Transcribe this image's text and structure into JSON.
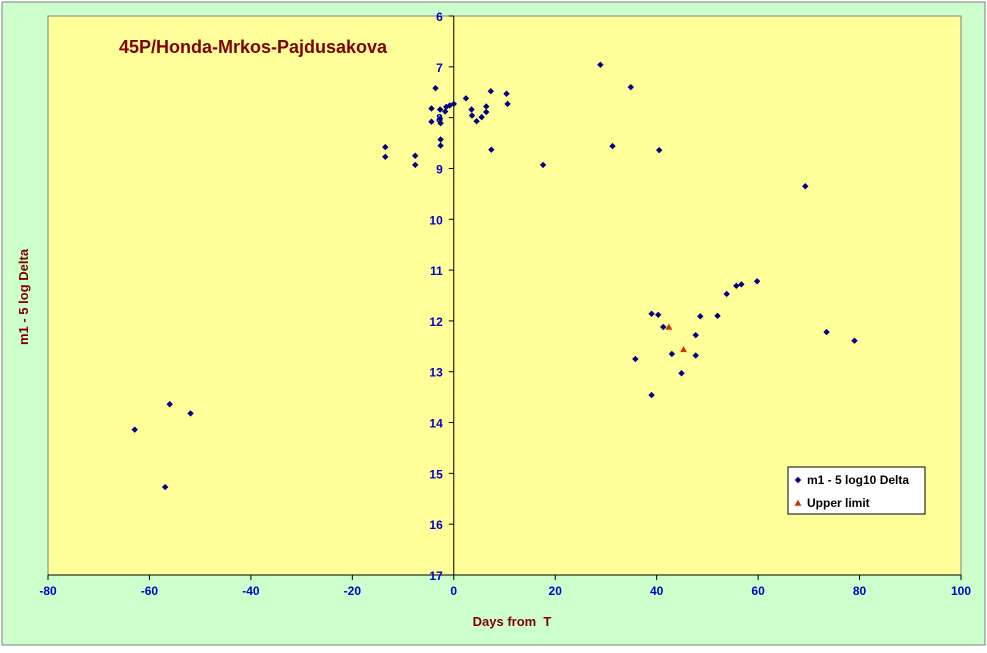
{
  "colors": {
    "chart_area": "#ccffcc",
    "plot_area": "#ffff99",
    "title": "#800000",
    "axis_title": "#800000",
    "tick_label": "#0000cc",
    "series_marker": "#000080",
    "upper_limit_marker": "#cc3300"
  },
  "chart_data": {
    "type": "scatter",
    "title": "45P/Honda-Mrkos-Pajdusakova",
    "xlabel": "Days from  T",
    "ylabel": "m1 - 5 log Delta",
    "xlim": [
      -80,
      100
    ],
    "ylim": [
      6,
      17
    ],
    "y_reversed": true,
    "grid": false,
    "legend_position": "lower-right",
    "x_ticks": [
      "-80",
      "-60",
      "-40",
      "-20",
      "0",
      "20",
      "40",
      "60",
      "80",
      "100"
    ],
    "y_ticks": [
      "6",
      "7",
      "8",
      "9",
      "10",
      "11",
      "12",
      "13",
      "14",
      "15",
      "16",
      "17"
    ],
    "series": [
      {
        "name": "m1 - 5 log10 Delta",
        "marker": "diamond",
        "points": [
          [
            -62.9,
            14.14
          ],
          [
            -56.0,
            13.64
          ],
          [
            -51.9,
            13.82
          ],
          [
            -56.9,
            15.27
          ],
          [
            -13.5,
            8.58
          ],
          [
            -13.5,
            8.77
          ],
          [
            -7.6,
            8.75
          ],
          [
            -7.6,
            8.93
          ],
          [
            -4.4,
            7.82
          ],
          [
            -4.4,
            8.08
          ],
          [
            -3.6,
            7.42
          ],
          [
            -2.7,
            7.84
          ],
          [
            -2.7,
            8.02
          ],
          [
            -2.6,
            8.11
          ],
          [
            -2.6,
            8.43
          ],
          [
            -2.6,
            8.55
          ],
          [
            -1.7,
            7.88
          ],
          [
            -1.5,
            7.79
          ],
          [
            -0.8,
            7.76
          ],
          [
            0.0,
            7.73
          ],
          [
            2.4,
            7.62
          ],
          [
            3.5,
            7.84
          ],
          [
            3.6,
            7.96
          ],
          [
            4.5,
            8.07
          ],
          [
            5.5,
            7.99
          ],
          [
            6.4,
            7.78
          ],
          [
            6.4,
            7.89
          ],
          [
            7.3,
            7.48
          ],
          [
            7.4,
            8.63
          ],
          [
            10.4,
            7.53
          ],
          [
            10.6,
            7.73
          ],
          [
            17.6,
            8.93
          ],
          [
            28.9,
            6.96
          ],
          [
            31.3,
            8.56
          ],
          [
            34.9,
            7.4
          ],
          [
            40.5,
            8.64
          ],
          [
            69.3,
            9.35
          ],
          [
            35.8,
            12.75
          ],
          [
            39.0,
            13.46
          ],
          [
            39.0,
            11.86
          ],
          [
            40.3,
            11.88
          ],
          [
            41.3,
            12.12
          ],
          [
            43.0,
            12.65
          ],
          [
            44.9,
            13.03
          ],
          [
            47.7,
            12.28
          ],
          [
            47.7,
            12.68
          ],
          [
            48.6,
            11.91
          ],
          [
            52.0,
            11.9
          ],
          [
            53.8,
            11.47
          ],
          [
            55.7,
            11.31
          ],
          [
            56.7,
            11.28
          ],
          [
            59.8,
            11.22
          ],
          [
            73.5,
            12.22
          ],
          [
            79.0,
            12.39
          ]
        ]
      },
      {
        "name": "Upper limit",
        "marker": "triangle",
        "points": [
          [
            42.4,
            12.12
          ],
          [
            45.3,
            12.56
          ]
        ]
      }
    ]
  }
}
